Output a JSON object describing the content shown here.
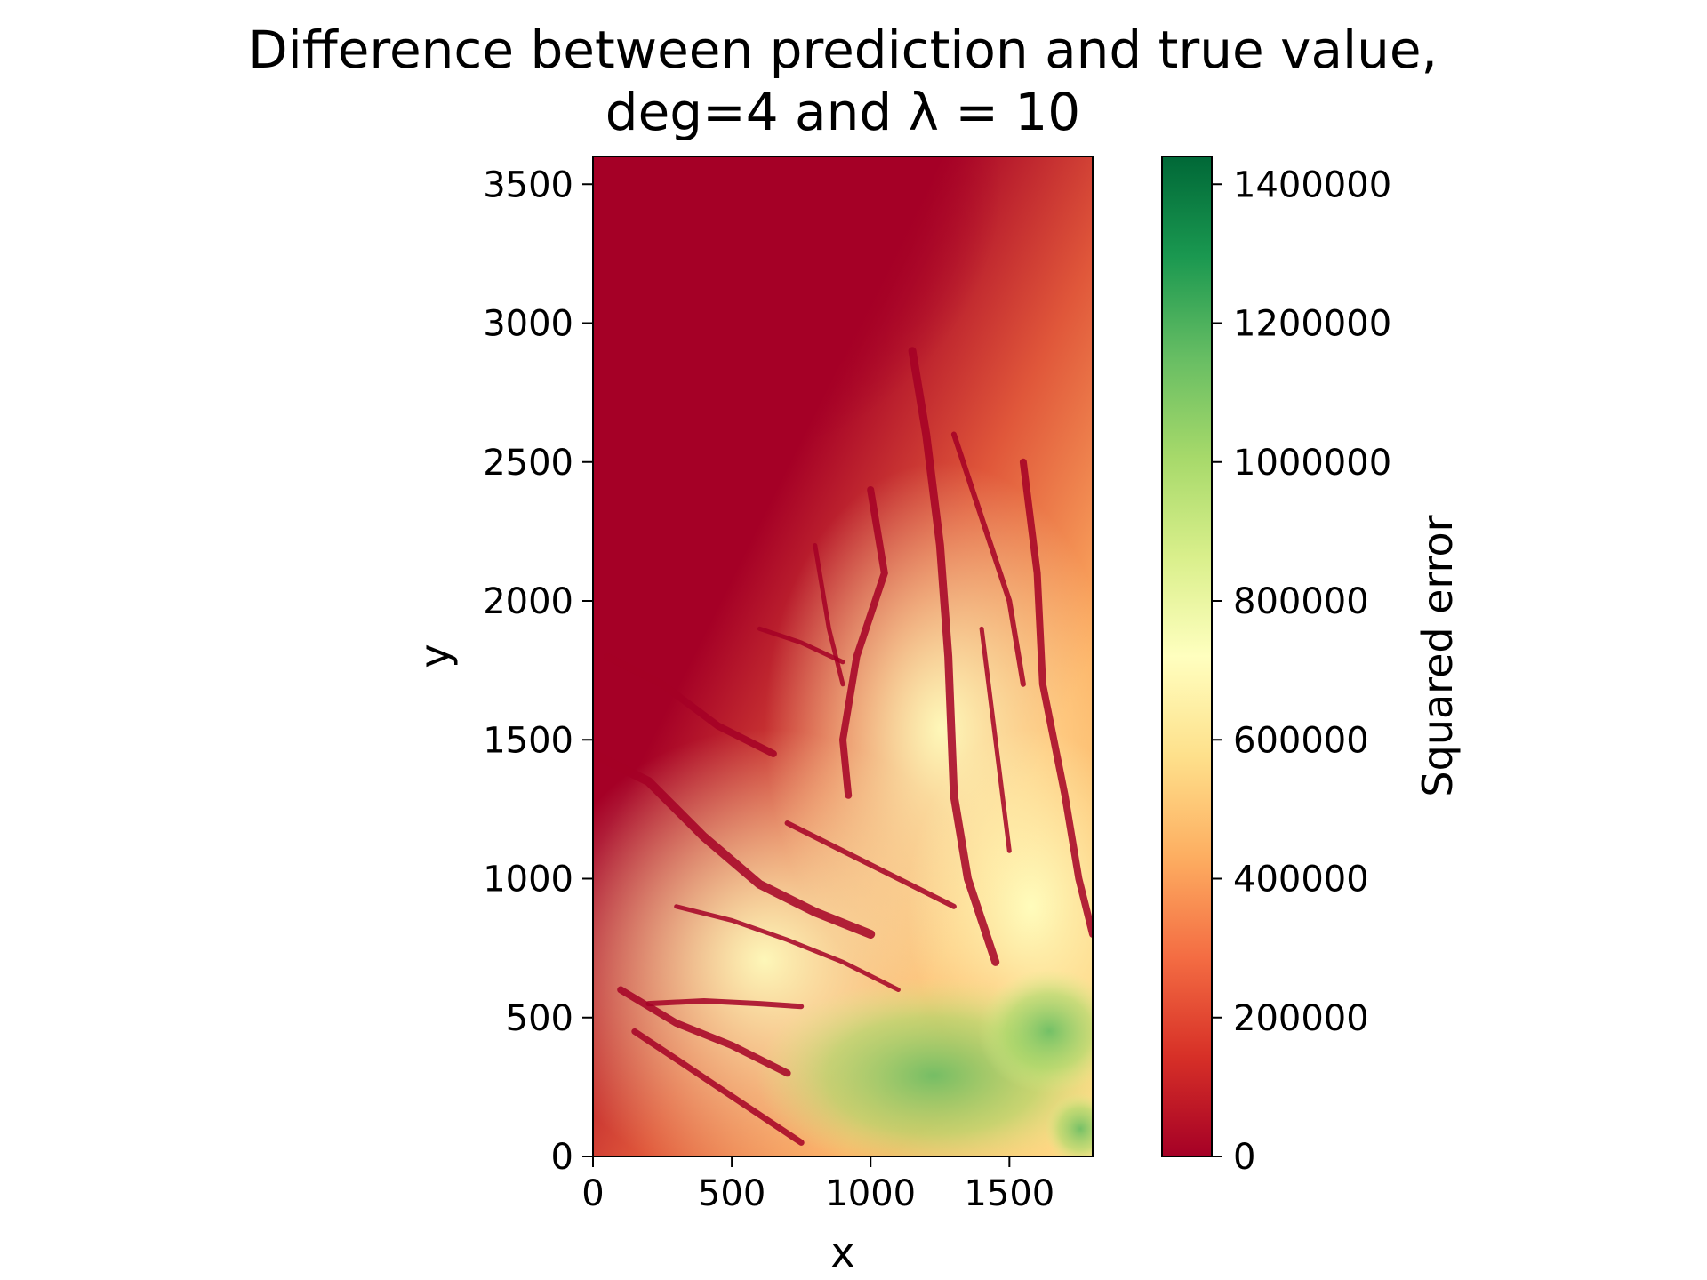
{
  "chart_data": {
    "type": "heatmap",
    "title_line1": "Difference between prediction and true value,",
    "title_line2": "deg=4 and λ = 10",
    "xlabel": "x",
    "ylabel": "y",
    "xlim": [
      0,
      1800
    ],
    "ylim": [
      0,
      3600
    ],
    "xticks": [
      0,
      500,
      1000,
      1500
    ],
    "yticks": [
      0,
      500,
      1000,
      1500,
      2000,
      2500,
      3000,
      3500
    ],
    "colorbar": {
      "label": "Squared error",
      "cmap": "RdYlGn",
      "range": [
        0,
        1440000
      ],
      "ticks": [
        0,
        200000,
        400000,
        600000,
        800000,
        1000000,
        1200000,
        1400000
      ],
      "colors": [
        "#a50026",
        "#d73027",
        "#f46d43",
        "#fdae61",
        "#fee08b",
        "#ffffbf",
        "#d9ef8b",
        "#a6d96a",
        "#66bd63",
        "#1a9850",
        "#006837"
      ]
    },
    "trend": "Squared error is near 0 over the upper-left region (y > 2300, x < 1200) and increases toward the lower-right, reaching roughly 1000000–1400000 in patches near x 800–1800, y 0–600; dark-red valley channels cross the map diagonally.",
    "grid": false
  }
}
